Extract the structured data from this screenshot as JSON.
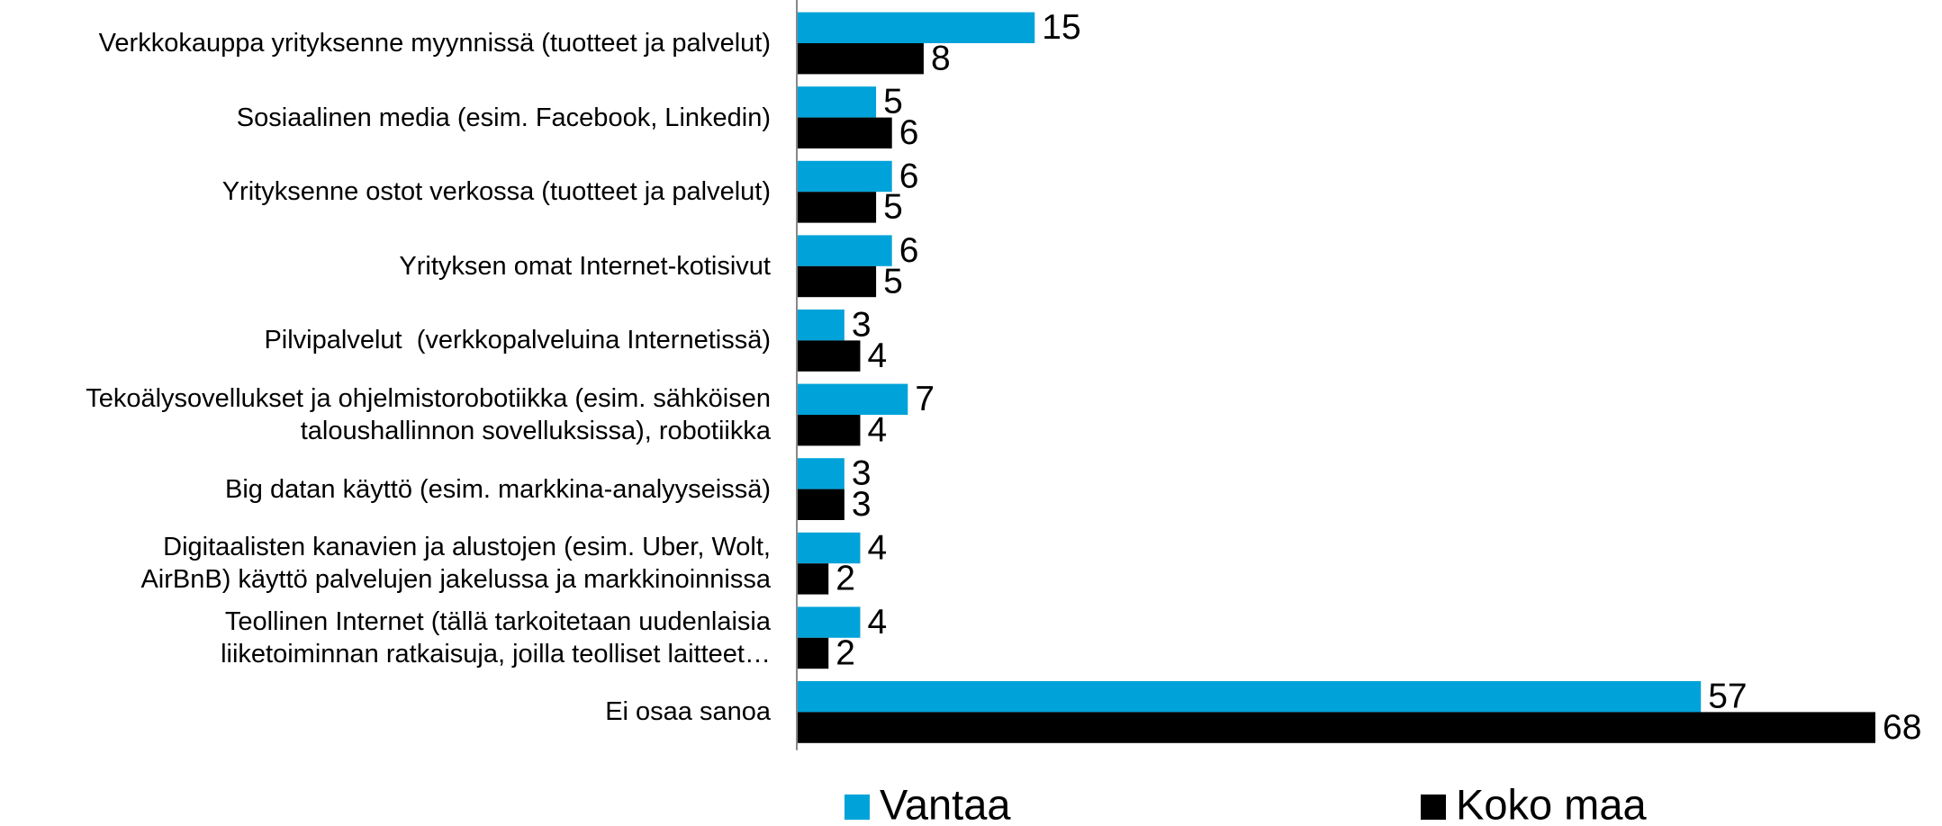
{
  "chart_data": {
    "type": "hbar",
    "categories": [
      "Verkkokauppa yrityksenne myynnissä (tuotteet ja palvelut)",
      "Sosiaalinen media (esim. Facebook, Linkedin)",
      "Yrityksenne ostot verkossa (tuotteet ja palvelut)",
      "Yrityksen omat Internet-kotisivut",
      "Pilvipalvelut  (verkkopalveluina Internetissä)",
      "Tekoälysovellukset ja ohjelmistorobotiikka (esim. sähköisen\ntaloushallinnon sovelluksissa), robotiikka",
      "Big datan käyttö (esim. markkina-analyyseissä)",
      "Digitaalisten kanavien ja alustojen (esim. Uber, Wolt,\nAirBnB) käyttö palvelujen jakelussa ja markkinoinnissa",
      "Teollinen Internet (tällä tarkoitetaan uudenlaisia\nliiketoiminnan ratkaisuja, joilla teolliset laitteet…",
      "Ei osaa sanoa"
    ],
    "series": [
      {
        "name": "Vantaa",
        "color": "#00a3d9",
        "values": [
          15,
          5,
          6,
          6,
          3,
          7,
          3,
          4,
          4,
          57
        ]
      },
      {
        "name": "Koko maa",
        "color": "#000000",
        "values": [
          8,
          6,
          5,
          5,
          4,
          4,
          3,
          2,
          2,
          68
        ]
      }
    ],
    "xlim": [
      0,
      68
    ],
    "legend": "bottom"
  }
}
